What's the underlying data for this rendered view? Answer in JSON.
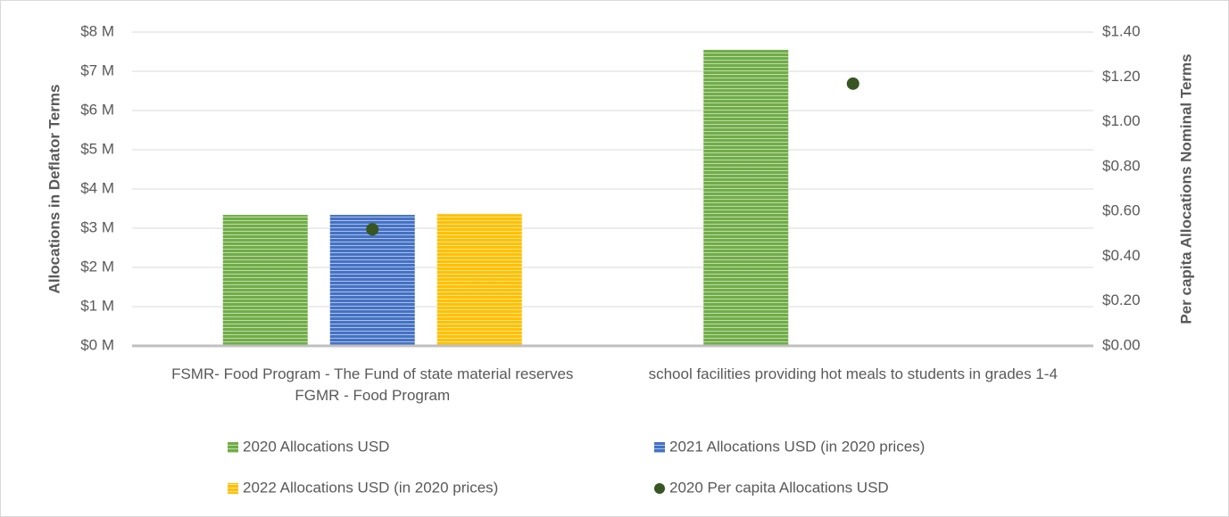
{
  "chart_data": {
    "type": "bar",
    "y_label": "Allocations in Deflator Terms",
    "y2_label": "Per capita Allocations Nominal Terms",
    "categories": [
      "FSMR- Food Program - The Fund of state material reserves FGMR - Food Program",
      "school facilities providing hot meals to students in grades 1-4"
    ],
    "series": [
      {
        "name": "2020 Allocations USD",
        "color": "#70ad47",
        "values": [
          3.34,
          7.55
        ]
      },
      {
        "name": "2021 Allocations USD (in 2020 prices)",
        "color": "#4472c4",
        "values": [
          3.34,
          null
        ]
      },
      {
        "name": "2022 Allocations USD (in 2020 prices)",
        "color": "#ffc000",
        "values": [
          3.36,
          null
        ]
      },
      {
        "name": "2020 Per capita Allocations USD",
        "color": "#375623",
        "type": "scatter",
        "axis": "y2",
        "values": [
          0.52,
          1.17
        ]
      }
    ],
    "ylim": [
      0,
      8
    ],
    "yticks": [
      {
        "value": 0,
        "label": "$0 M"
      },
      {
        "value": 1,
        "label": "$1 M"
      },
      {
        "value": 2,
        "label": "$2 M"
      },
      {
        "value": 3,
        "label": "$3 M"
      },
      {
        "value": 4,
        "label": "$4 M"
      },
      {
        "value": 5,
        "label": "$5 M"
      },
      {
        "value": 6,
        "label": "$6 M"
      },
      {
        "value": 7,
        "label": "$7 M"
      },
      {
        "value": 8,
        "label": "$8 M"
      }
    ],
    "y2lim": [
      0,
      1.4
    ],
    "y2ticks": [
      {
        "value": 0,
        "label": "$0.00"
      },
      {
        "value": 0.2,
        "label": "$0.20"
      },
      {
        "value": 0.4,
        "label": "$0.40"
      },
      {
        "value": 0.6,
        "label": "$0.60"
      },
      {
        "value": 0.8,
        "label": "$0.80"
      },
      {
        "value": 1.0,
        "label": "$1.00"
      },
      {
        "value": 1.2,
        "label": "$1.20"
      },
      {
        "value": 1.4,
        "label": "$1.40"
      }
    ],
    "grid": true,
    "legend": "bottom"
  }
}
